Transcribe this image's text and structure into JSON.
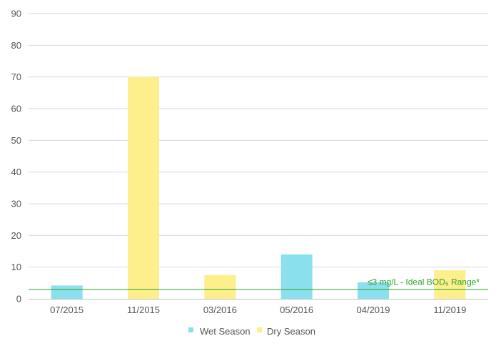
{
  "chart_data": {
    "type": "bar",
    "categories": [
      "07/2015",
      "11/2015",
      "03/2016",
      "05/2016",
      "04/2019",
      "11/2019"
    ],
    "series": [
      {
        "name": "Wet Season",
        "color": "#8ae0ec",
        "values": [
          4.2,
          null,
          null,
          14,
          5.2,
          null
        ]
      },
      {
        "name": "Dry Season",
        "color": "#fdef8b",
        "values": [
          null,
          70,
          7.5,
          null,
          null,
          9.0
        ]
      }
    ],
    "yticks": [
      0,
      10,
      20,
      30,
      40,
      50,
      60,
      70,
      80,
      90
    ],
    "ylim": [
      0,
      90
    ],
    "grid": true,
    "legend": "bottom",
    "reference_line": {
      "value": 3,
      "color": "#2ca02c",
      "label": "≤3 mg/L - Ideal BOD₅ Range*"
    }
  }
}
